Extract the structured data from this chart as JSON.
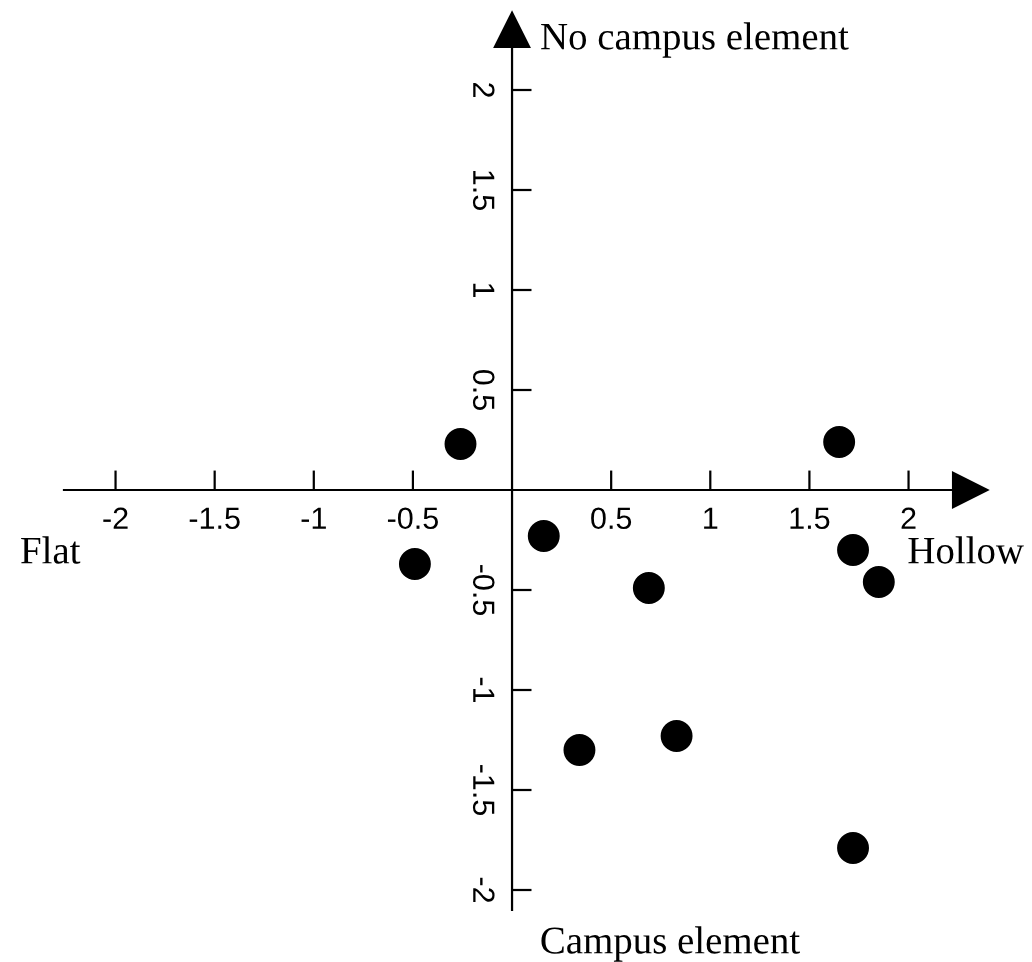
{
  "chart_data": {
    "type": "scatter",
    "xlabel": "Hollow",
    "ylabel": "No campus element",
    "annotations": [
      "Flat",
      "Campus element"
    ],
    "x": [
      -0.26,
      -0.49,
      0.16,
      0.69,
      0.34,
      0.83,
      1.65,
      1.72,
      1.85,
      1.72
    ],
    "values": [
      0.23,
      -0.37,
      -0.23,
      -0.49,
      -1.3,
      -1.23,
      0.24,
      -0.3,
      -0.46,
      -1.79
    ],
    "color": "#000000",
    "marker": "circle",
    "xlim": [
      -2.26,
      2.31
    ],
    "ylim": [
      -2.1,
      2.3
    ],
    "xticks": [
      -2,
      -1.5,
      -1,
      -0.5,
      0.5,
      1,
      1.5,
      2
    ],
    "yticks": [
      -2,
      -1.5,
      -1,
      -0.5,
      0.5,
      1,
      1.5,
      2
    ],
    "grid": false,
    "legend": false
  }
}
